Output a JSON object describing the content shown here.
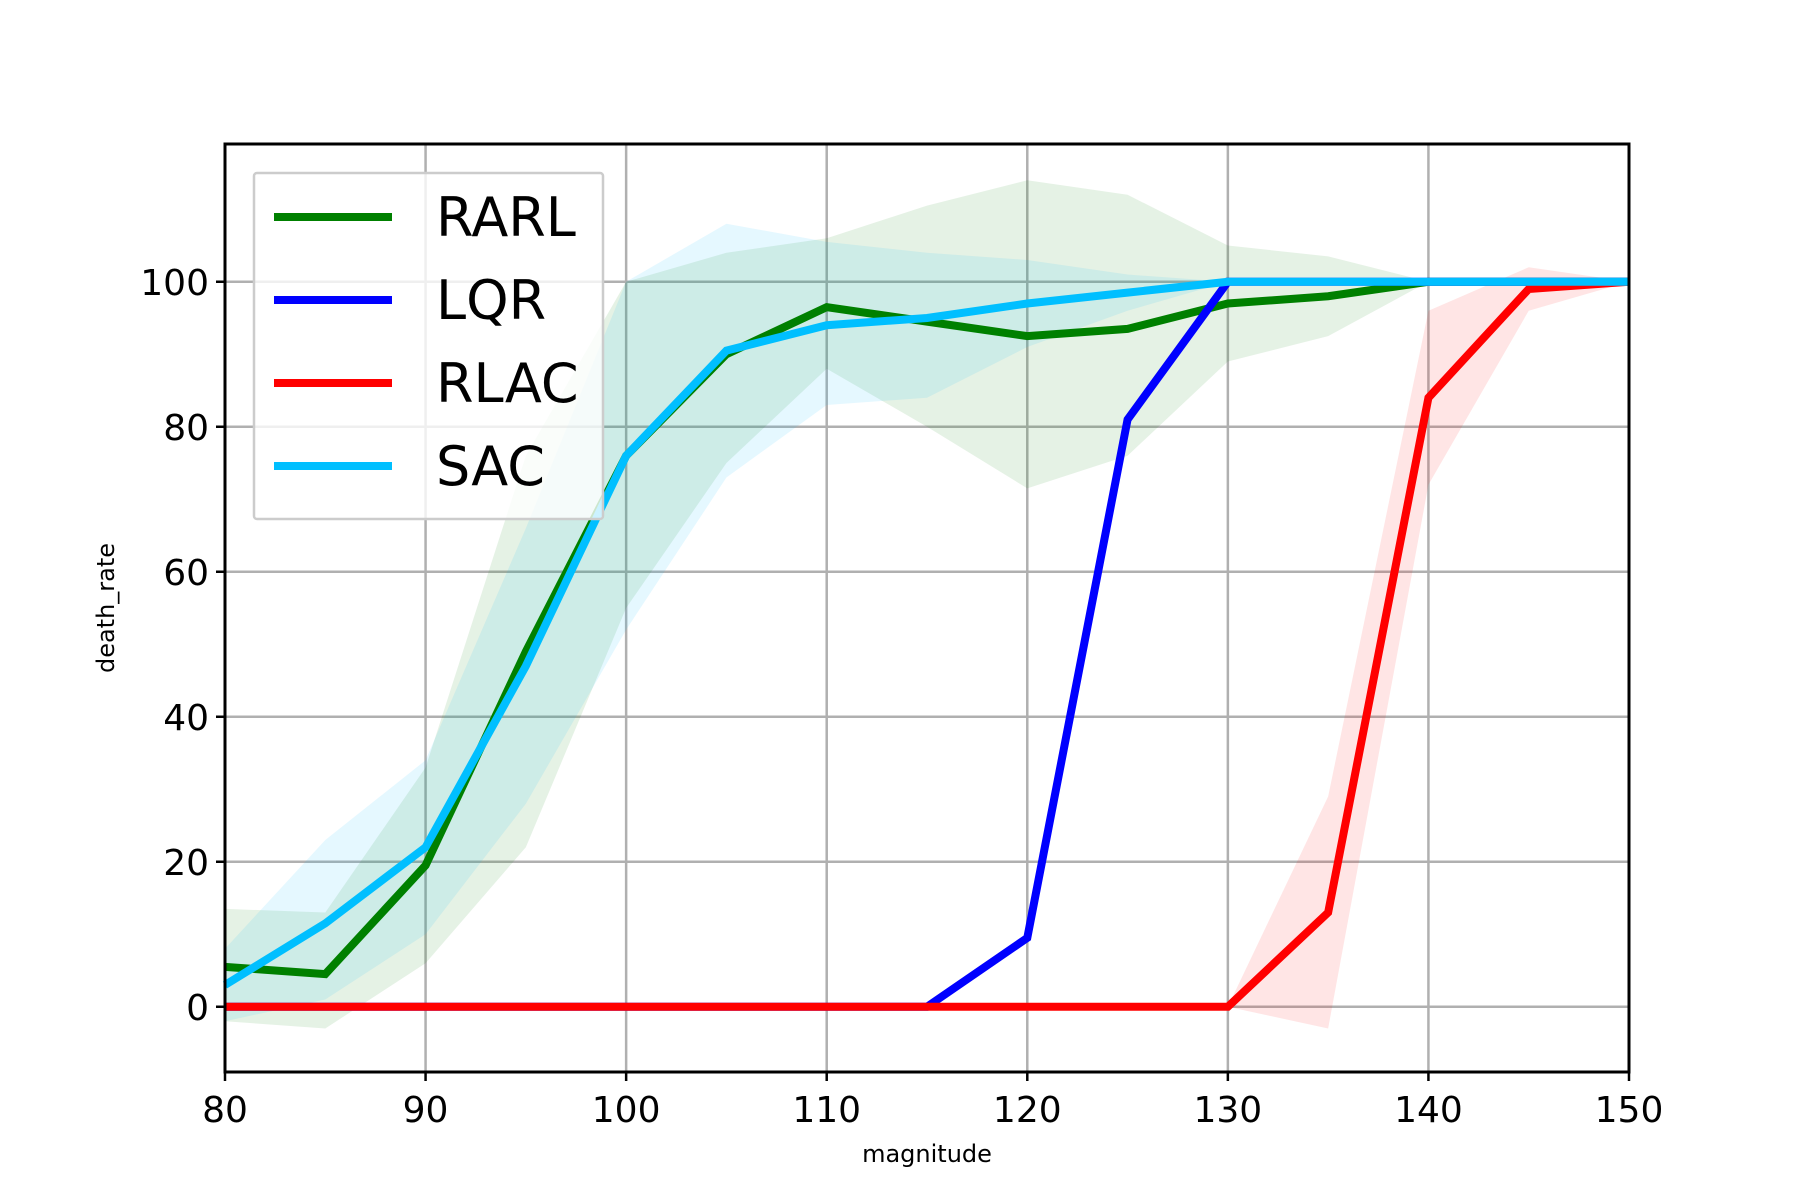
{
  "chart_data": {
    "type": "line",
    "xlabel": "magnitude",
    "ylabel": "death_rate",
    "xlim": [
      80,
      150
    ],
    "ylim": [
      -9,
      119
    ],
    "xticks": [
      80,
      90,
      100,
      110,
      120,
      130,
      140,
      150
    ],
    "yticks": [
      0,
      20,
      40,
      60,
      80,
      100
    ],
    "grid": true,
    "legend_position": "top-left",
    "x": [
      80,
      85,
      90,
      95,
      100,
      105,
      110,
      115,
      120,
      125,
      130,
      135,
      140,
      145,
      150
    ],
    "series": [
      {
        "name": "RARL",
        "color": "#008000",
        "values": [
          5.5,
          4.5,
          19.5,
          49,
          76,
          90,
          96.5,
          94.5,
          92.5,
          93.5,
          97,
          98,
          100,
          100,
          100
        ],
        "lower": [
          -2,
          -3,
          6,
          22,
          55,
          75,
          88,
          80,
          71.5,
          76,
          89,
          92.5,
          100,
          100,
          100
        ],
        "upper": [
          13.5,
          13,
          33,
          76,
          100,
          104,
          106,
          110.5,
          114,
          112,
          105,
          103.5,
          100,
          100,
          100
        ]
      },
      {
        "name": "LQR",
        "color": "#0000ff",
        "values": [
          0,
          0,
          0,
          0,
          0,
          0,
          0,
          0,
          9.5,
          81,
          100,
          100,
          100,
          100,
          100
        ]
      },
      {
        "name": "RLAC",
        "color": "#ff0000",
        "values": [
          0,
          0,
          0,
          0,
          0,
          0,
          0,
          0,
          0,
          0,
          0,
          13,
          84,
          99,
          100
        ],
        "lower": [
          0,
          0,
          0,
          0,
          0,
          0,
          0,
          0,
          0,
          0,
          0,
          -3,
          72,
          96,
          100
        ],
        "upper": [
          0,
          0,
          0,
          0,
          0,
          0,
          0,
          0,
          0,
          0,
          0,
          29,
          96,
          102,
          100
        ]
      },
      {
        "name": "SAC",
        "color": "#00bfff",
        "values": [
          3,
          11.5,
          22,
          47,
          76,
          90.5,
          94,
          95,
          97,
          98.5,
          100,
          100,
          100,
          100,
          100
        ],
        "lower": [
          -2,
          1,
          10,
          28,
          52,
          73,
          83,
          84,
          91,
          96,
          100,
          100,
          100,
          100,
          100
        ],
        "upper": [
          8,
          23,
          34,
          66,
          100,
          108,
          105.5,
          104,
          103,
          101,
          100,
          100,
          100,
          100,
          100
        ]
      }
    ]
  }
}
